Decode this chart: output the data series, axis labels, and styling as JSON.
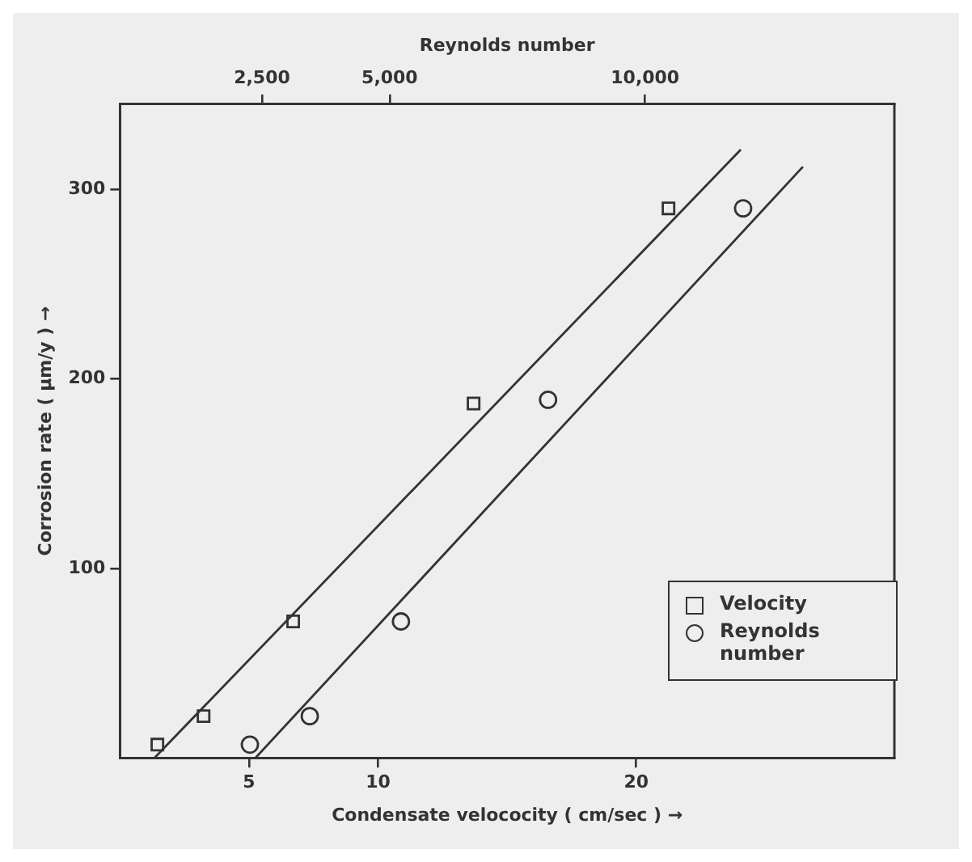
{
  "chart_data": {
    "type": "scatter",
    "xlabel": "Condensate velococity ( cm/sec ) →",
    "x2label": "Reynolds number",
    "ylabel": "Corrosion rate ( μm/y ) →",
    "xlim": [
      0,
      30
    ],
    "xticks": [
      5,
      10,
      20
    ],
    "x2lim": [
      -280,
      14880
    ],
    "x2ticks": [
      {
        "value": 2500,
        "label": "2,500"
      },
      {
        "value": 5000,
        "label": "5,000"
      },
      {
        "value": 10000,
        "label": "10,000"
      }
    ],
    "ylim": [
      0,
      345
    ],
    "yticks": [
      100,
      200,
      300
    ],
    "grid": false,
    "legend": "bottom right",
    "series": [
      {
        "name": "Velocity",
        "type": "scatter",
        "marker": "square",
        "color": "#333333",
        "x": [
          1.45,
          3.24,
          6.71,
          13.7,
          21.25
        ],
        "values": [
          7,
          22,
          72,
          187,
          290
        ]
      },
      {
        "name": "Reynolds number",
        "type": "scatter",
        "axis": "x2",
        "marker": "circle",
        "color": "#333333",
        "x": [
          2264,
          3436,
          5221,
          8101,
          11919
        ],
        "values": [
          7,
          22,
          72,
          189,
          290
        ]
      },
      {
        "type": "line",
        "marker": "none",
        "line_style": "solid",
        "color": "#333333",
        "x": [
          1.34,
          24.05
        ],
        "values": [
          0,
          321
        ]
      },
      {
        "type": "line",
        "axis": "x2",
        "marker": "none",
        "line_style": "solid",
        "color": "#333333",
        "x": [
          2374,
          13091
        ],
        "values": [
          0,
          312
        ]
      }
    ]
  }
}
